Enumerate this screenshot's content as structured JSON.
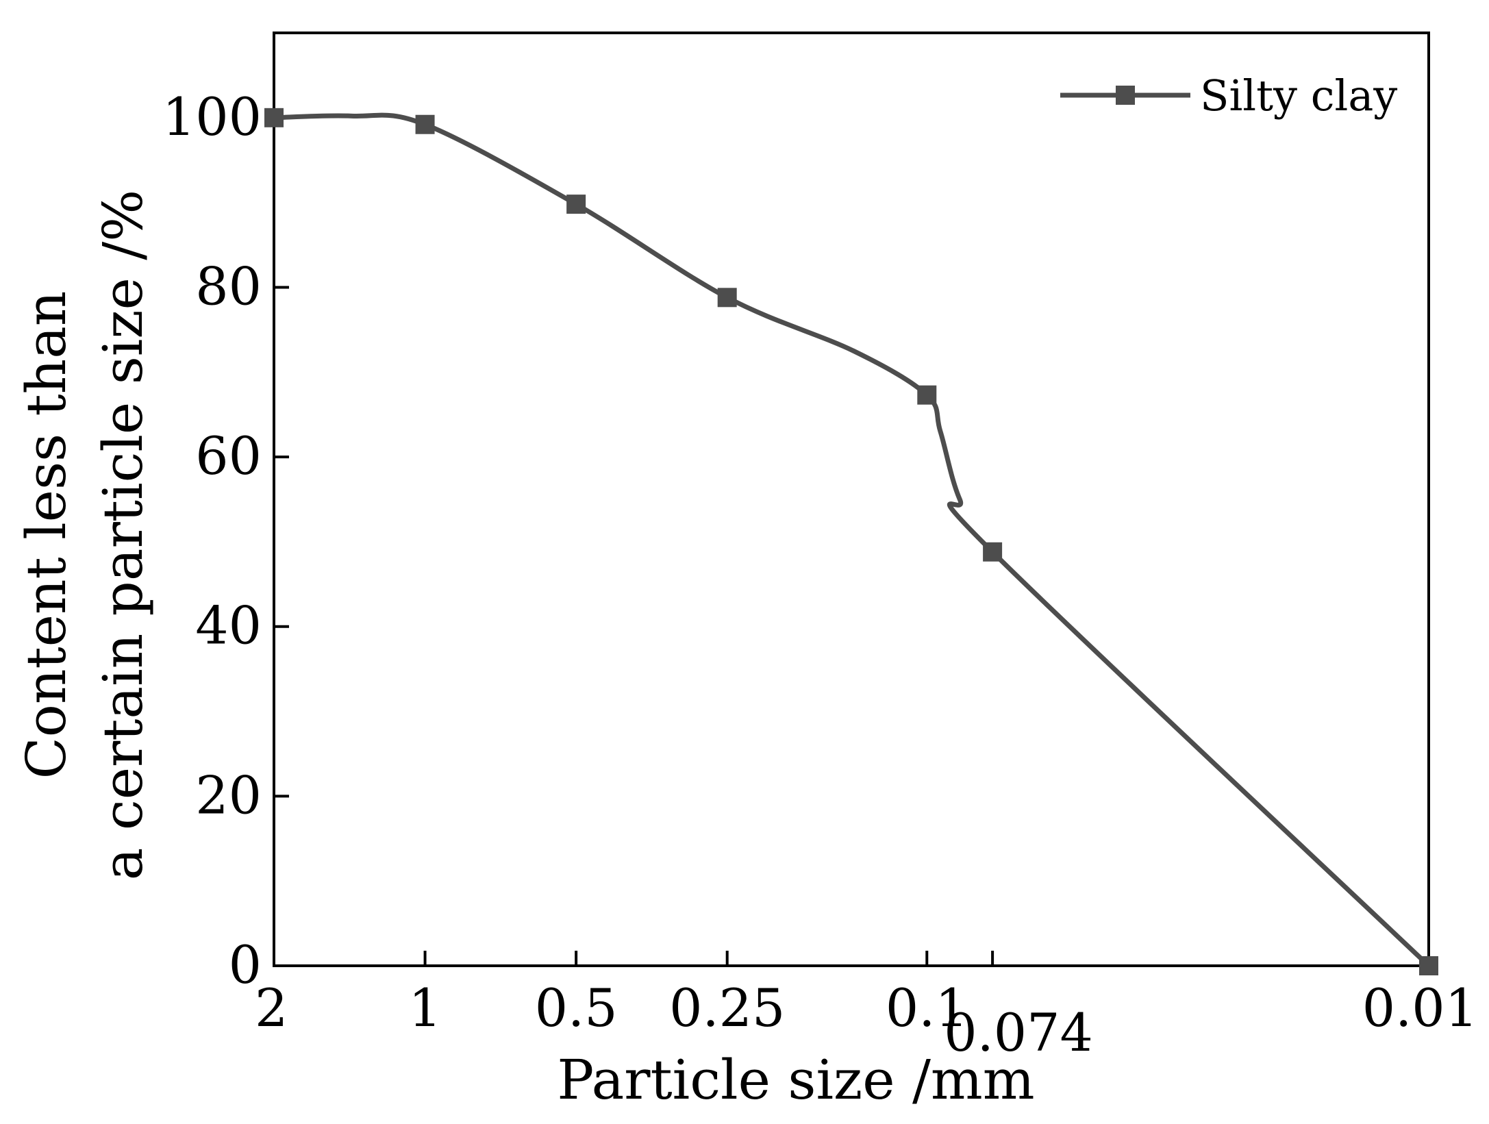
{
  "chart_data": {
    "type": "line",
    "title": "",
    "xlabel": "Particle size /mm",
    "ylabel_lines": [
      "Content less than",
      "a certain particle size /%"
    ],
    "x_tick_labels": [
      "2",
      "1",
      "0.5",
      "0.25",
      "0.1",
      "0.074",
      "0.01"
    ],
    "y_ticks": [
      0,
      20,
      40,
      60,
      80,
      100
    ],
    "y_tick_labels": [
      "0",
      "20",
      "40",
      "60",
      "80",
      "100"
    ],
    "ylim": [
      0,
      110
    ],
    "x_scale": "log",
    "x_reversed": true,
    "legend_position": "top-right",
    "series": [
      {
        "name": "Silty clay",
        "color": "#4d4d4d",
        "marker": "square",
        "x": [
          2,
          1,
          0.5,
          0.25,
          0.1,
          0.074,
          0.01
        ],
        "values": [
          100,
          99.2,
          89.8,
          78.8,
          67.3,
          48.8,
          0
        ]
      }
    ],
    "curve_shape_points": [
      {
        "x": 2,
        "y": 100
      },
      {
        "x": 1.4,
        "y": 100.2
      },
      {
        "x": 1,
        "y": 99.2
      },
      {
        "x": 0.5,
        "y": 89.8
      },
      {
        "x": 0.25,
        "y": 78.8
      },
      {
        "x": 0.14,
        "y": 72.5
      },
      {
        "x": 0.1,
        "y": 67.3
      },
      {
        "x": 0.094,
        "y": 63.0
      },
      {
        "x": 0.086,
        "y": 55.0
      },
      {
        "x": 0.074,
        "y": 48.8
      },
      {
        "x": 0.01,
        "y": 0
      }
    ]
  }
}
